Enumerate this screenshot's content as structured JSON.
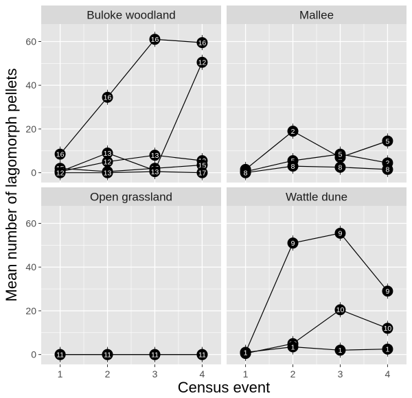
{
  "chart_data": {
    "type": "line",
    "facet_layout": "2x2",
    "xlabel": "Census event",
    "ylabel": "Mean number of lagomorph pellets",
    "x_ticks": [
      1,
      2,
      3,
      4
    ],
    "y_ticks": [
      0,
      20,
      40,
      60
    ],
    "ylim": [
      -4.5,
      68
    ],
    "grid": true,
    "legend": "none",
    "colors": {
      "panel_bg": "#e5e5e5",
      "strip_bg": "#d9d9d9",
      "grid": "#ffffff",
      "point": "#000000",
      "line": "#000000",
      "label": "#ffffff"
    },
    "facets": [
      {
        "name": "Buloke woodland",
        "series": [
          {
            "x": [
              1,
              2,
              3,
              4
            ],
            "y": [
              8.5,
              34.5,
              61,
              59.5
            ],
            "labels": [
              "16",
              "16",
              "16",
              "16"
            ]
          },
          {
            "x": [
              1,
              2,
              3,
              4
            ],
            "y": [
              0.5,
              9,
              1,
              50.5
            ],
            "labels": [
              "12",
              "13",
              "12",
              "12"
            ]
          },
          {
            "x": [
              1,
              2,
              3,
              4
            ],
            "y": [
              0.5,
              5,
              8,
              5.5
            ],
            "labels": [
              "12",
              "12",
              "13",
              "13"
            ]
          },
          {
            "x": [
              1,
              2,
              3,
              4
            ],
            "y": [
              2,
              0.5,
              2,
              3.5
            ],
            "labels": [
              "15",
              "14",
              "15",
              "15"
            ]
          },
          {
            "x": [
              1,
              2,
              3,
              4
            ],
            "y": [
              0,
              0,
              0.5,
              0
            ],
            "labels": [
              "12",
              "13",
              "13",
              "17"
            ]
          }
        ]
      },
      {
        "name": "Mallee",
        "series": [
          {
            "x": [
              1,
              2,
              3,
              4
            ],
            "y": [
              1.5,
              19,
              7,
              14.5
            ],
            "labels": [
              "2",
              "2",
              "2",
              "5"
            ]
          },
          {
            "x": [
              1,
              2,
              3,
              4
            ],
            "y": [
              0.5,
              5.5,
              8.5,
              4.5
            ],
            "labels": [
              "8",
              "5",
              "5",
              "2"
            ]
          },
          {
            "x": [
              1,
              2,
              3,
              4
            ],
            "y": [
              0,
              3,
              2.5,
              1.5
            ],
            "labels": [
              "8",
              "8",
              "8",
              "8"
            ]
          }
        ]
      },
      {
        "name": "Open grassland",
        "series": [
          {
            "x": [
              1,
              2,
              3,
              4
            ],
            "y": [
              0,
              0,
              0,
              0
            ],
            "labels": [
              "11",
              "8",
              "11",
              "8"
            ]
          },
          {
            "x": [
              1,
              2,
              3,
              4
            ],
            "y": [
              0,
              0,
              0,
              0
            ],
            "labels": [
              "11",
              "11",
              "11",
              "11"
            ]
          }
        ]
      },
      {
        "name": "Wattle dune",
        "series": [
          {
            "x": [
              1,
              2,
              3,
              4
            ],
            "y": [
              1,
              51,
              55.5,
              29
            ],
            "labels": [
              "9",
              "9",
              "9",
              "9"
            ]
          },
          {
            "x": [
              1,
              2,
              3,
              4
            ],
            "y": [
              0.5,
              5,
              20.5,
              12
            ],
            "labels": [
              "10",
              "10",
              "10",
              "10"
            ]
          },
          {
            "x": [
              1,
              2,
              3,
              4
            ],
            "y": [
              1,
              3.5,
              2,
              2.5
            ],
            "labels": [
              "1",
              "1",
              "1",
              "1"
            ]
          }
        ]
      }
    ]
  }
}
